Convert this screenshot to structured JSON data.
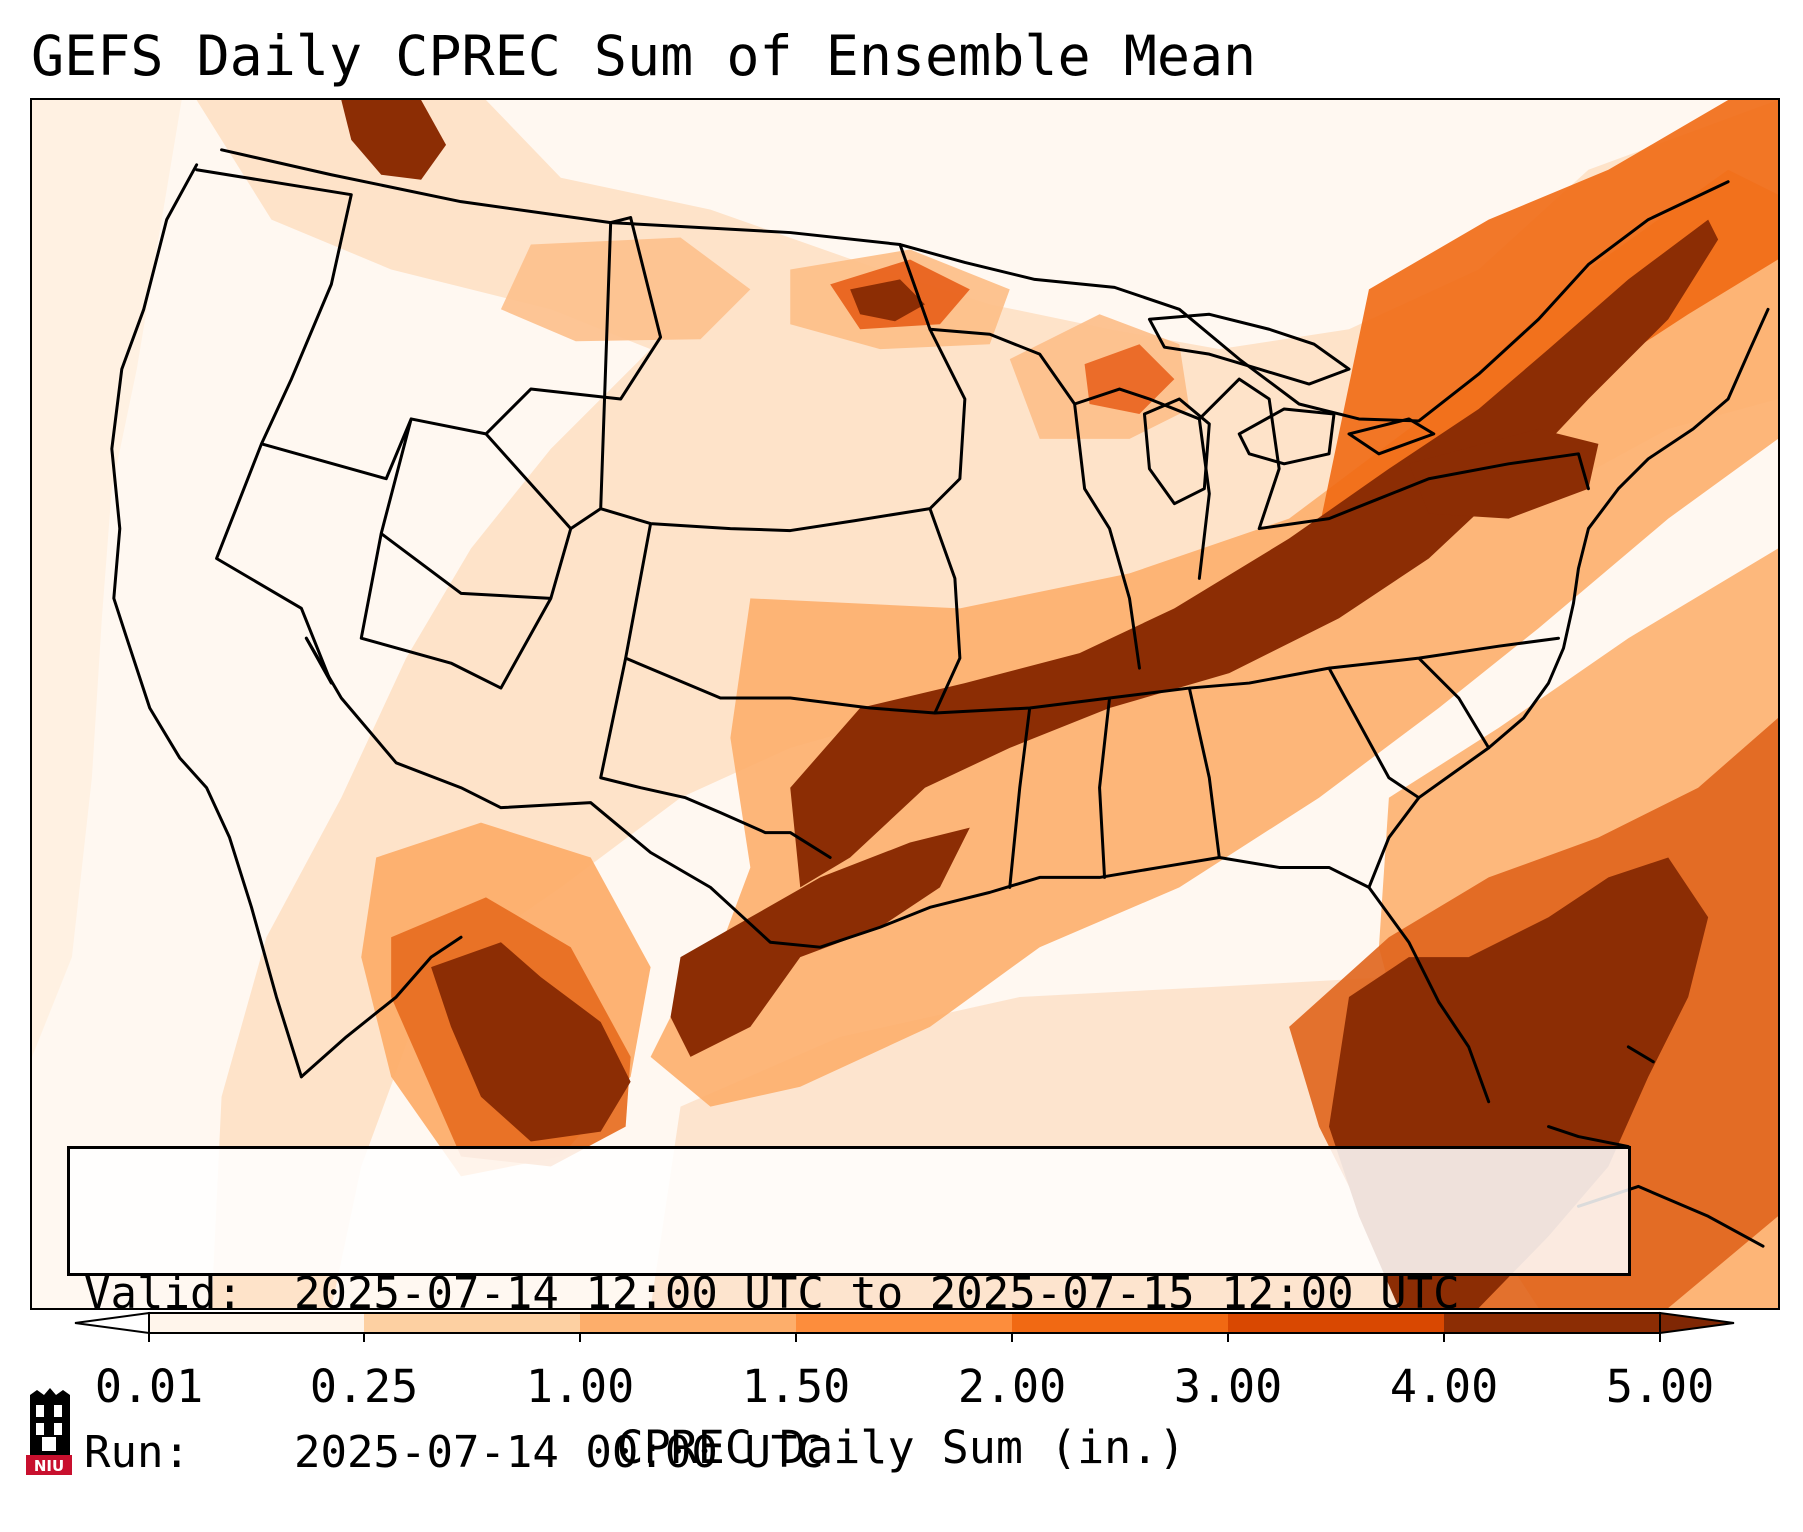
{
  "title": "GEFS Daily CPREC Sum of Ensemble Mean",
  "info": {
    "valid_label": "Valid:",
    "valid_value": "2025-07-14 12:00 UTC to 2025-07-15 12:00 UTC",
    "run_label": "Run:",
    "run_value": "2025-07-14 00:00 UTC"
  },
  "colorbar": {
    "label": "CPREC Daily Sum (in.)",
    "ticks": [
      "0.01",
      "0.25",
      "1.00",
      "1.50",
      "2.00",
      "3.00",
      "4.00",
      "5.00"
    ],
    "colors": [
      "#fff5eb",
      "#fdd0a2",
      "#fdae6b",
      "#fd8d3c",
      "#f16913",
      "#d94801",
      "#8c2d04"
    ],
    "under_color": "#ffffff",
    "over_color": "#7f2704"
  },
  "map": {
    "region": "CONUS",
    "field": "CPREC",
    "palette": "Oranges"
  },
  "logo": {
    "text": "NIU",
    "colors": [
      "#000000",
      "#c8102e"
    ]
  }
}
